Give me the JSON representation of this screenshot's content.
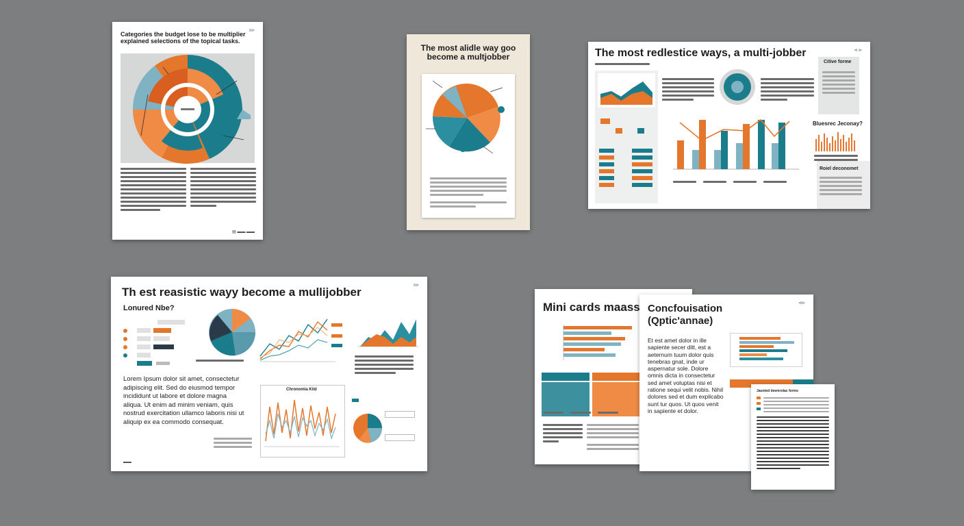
{
  "colors": {
    "orange": "#e4772c",
    "teal": "#1b7d8c",
    "lightblue": "#7fb2c3",
    "navy": "#2b3a48",
    "grey": "#d6d8d8",
    "paper": "#efe7da"
  },
  "sheet1": {
    "title_line1": "Categories the budget lose to be multiplier",
    "title_line2": "explained selections of the topical tasks.",
    "page_mark": "≡⊳",
    "footer_mark": "▤ ▬▬ ▬▬"
  },
  "sheet2": {
    "title_line1": "The most alidle way goo",
    "title_line2": "become a multjobber"
  },
  "sheet3": {
    "title": "The most redlestice ways, a multi-jobber",
    "page_mark": "⊲ ⊳",
    "sidebar_title": "Citive forme",
    "section_title": "Bluesrec Jeconay?",
    "subsection_title": "Roiel deconomet"
  },
  "sheet4": {
    "title": "Th est reasistic wayy become a mullijobber",
    "subtitle": "Lonured Nbe?",
    "page_mark": "≡⊳",
    "body_text": "Lorem Ipsum dolor sit amet, consectetur adipiscing elit. Sed do eiusmod tempor incididunt ut labore et dolore magna aliqua. Ut enim ad minim veniam, quis nostrud exercitation ullamco laboris nisi ut aliquip ex ea commodo consequat.",
    "chart_caption": "Chronomia Kild",
    "footer_mark": "▬▬"
  },
  "sheet5": {
    "title": "Mini cards maass"
  },
  "sheet6": {
    "title_line1": "Concfouisation",
    "title_line2": "(Qptic'annae)",
    "page_mark": "⊲⊳",
    "body_text": "Et est amet dolor in ille sapiente secer ditt, est a aeternum tuum dolor quis tenebras gnat, inde ur aspernatur sole. Dolore omnis dicta in consectetur sed amet voluptas nisi et ratione sequi velit nobis. Nihil dolores sed et dum explicabo sunt tur quos. Ut quos venit in sapiente et dolor."
  },
  "sheet7": {
    "header": "Jaunted deemrolac forms"
  }
}
